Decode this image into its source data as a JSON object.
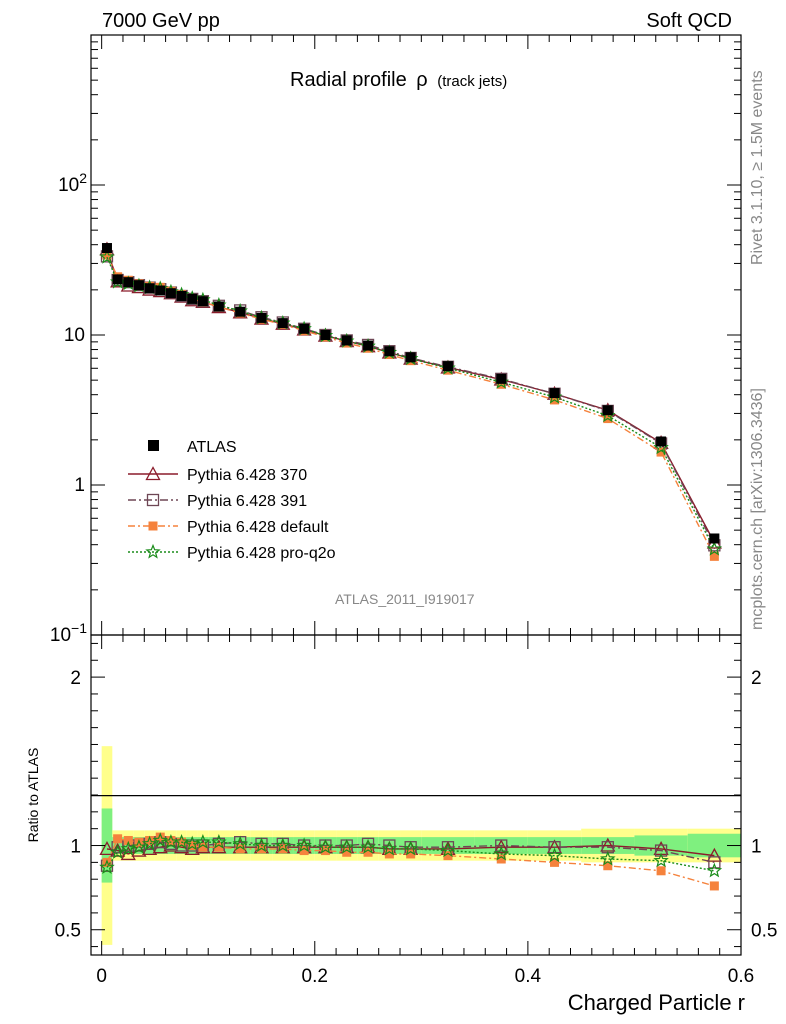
{
  "header": {
    "left": "7000 GeV pp",
    "right": "Soft QCD"
  },
  "side_labels": {
    "rivet": "Rivet 3.1.10, ≥ 1.5M events",
    "mcplots": "mcplots.cern.ch [arXiv:1306.3436]"
  },
  "watermark": "ATLAS_2011_I919017",
  "chart_data": {
    "type": "line",
    "title_main": "Radial profile",
    "title_symbol": "ρ",
    "title_sub": "(track jets)",
    "xlabel": "Charged Particle r",
    "ylabel": "",
    "ratio_ylabel": "Ratio to ATLAS",
    "xlim": [
      -0.01,
      0.6
    ],
    "ylim": [
      0.1,
      1000
    ],
    "ylog": true,
    "ratio_ylim": [
      0.35,
      2.25
    ],
    "x_ticks": [
      {
        "v": 0,
        "label": "0"
      },
      {
        "v": 0.2,
        "label": "0.2"
      },
      {
        "v": 0.4,
        "label": "0.4"
      },
      {
        "v": 0.6,
        "label": "0.6"
      }
    ],
    "y_ticks": [
      {
        "v": 0.1,
        "base": "10",
        "exp": "−1"
      },
      {
        "v": 1,
        "base": "1",
        "exp": ""
      },
      {
        "v": 10,
        "base": "10",
        "exp": ""
      },
      {
        "v": 100,
        "base": "10",
        "exp": "2"
      }
    ],
    "ratio_ticks": [
      {
        "v": 0.5,
        "label": "0.5"
      },
      {
        "v": 1,
        "label": "1"
      },
      {
        "v": 2,
        "label": "2"
      }
    ],
    "x": [
      0.005,
      0.015,
      0.025,
      0.035,
      0.045,
      0.055,
      0.065,
      0.075,
      0.085,
      0.095,
      0.11,
      0.13,
      0.15,
      0.17,
      0.19,
      0.21,
      0.23,
      0.25,
      0.27,
      0.29,
      0.325,
      0.375,
      0.425,
      0.475,
      0.525,
      0.575
    ],
    "x_err": [
      0.005,
      0.005,
      0.005,
      0.005,
      0.005,
      0.005,
      0.005,
      0.005,
      0.005,
      0.005,
      0.01,
      0.01,
      0.01,
      0.01,
      0.01,
      0.01,
      0.01,
      0.01,
      0.01,
      0.01,
      0.025,
      0.025,
      0.025,
      0.025,
      0.025,
      0.025
    ],
    "data_values": [
      38,
      23.5,
      22.5,
      21.5,
      20.5,
      19.8,
      19.0,
      18.2,
      17.4,
      16.8,
      15.5,
      14.3,
      13.0,
      12.0,
      11.0,
      10.0,
      9.2,
      8.5,
      7.8,
      7.1,
      6.2,
      5.1,
      4.1,
      3.15,
      1.95,
      0.44
    ],
    "ratio_band_inner": [
      0.22,
      0.05,
      0.05,
      0.05,
      0.05,
      0.05,
      0.05,
      0.05,
      0.05,
      0.05,
      0.05,
      0.05,
      0.05,
      0.05,
      0.05,
      0.05,
      0.05,
      0.05,
      0.05,
      0.05,
      0.05,
      0.05,
      0.05,
      0.05,
      0.06,
      0.07
    ],
    "ratio_band_outer": [
      0.59,
      0.09,
      0.09,
      0.09,
      0.09,
      0.09,
      0.09,
      0.09,
      0.09,
      0.09,
      0.09,
      0.09,
      0.09,
      0.09,
      0.09,
      0.09,
      0.09,
      0.09,
      0.09,
      0.09,
      0.09,
      0.09,
      0.09,
      0.1,
      0.1,
      0.1
    ],
    "series": [
      {
        "name": "Pythia 6.428 370",
        "color": "#8b1c2b",
        "marker": "triangle-open",
        "dash": "",
        "ratio": [
          0.98,
          0.97,
          0.95,
          0.97,
          0.98,
          0.99,
          1.0,
          0.99,
          0.98,
          0.99,
          0.99,
          0.99,
          0.99,
          0.99,
          0.99,
          0.99,
          0.99,
          0.99,
          0.98,
          0.98,
          0.98,
          0.99,
          0.99,
          1.0,
          0.98,
          0.94
        ]
      },
      {
        "name": "Pythia 6.428 391",
        "color": "#6e4655",
        "marker": "square-open",
        "dash": "8,3,2,3",
        "ratio": [
          0.88,
          0.99,
          1.0,
          1.0,
          1.01,
          1.02,
          1.01,
          1.0,
          1.0,
          1.0,
          1.01,
          1.02,
          1.01,
          1.01,
          1.0,
          1.0,
          1.0,
          1.01,
          1.0,
          0.99,
          0.99,
          1.0,
          0.99,
          0.99,
          0.97,
          0.9
        ]
      },
      {
        "name": "Pythia 6.428 default",
        "color": "#f5823c",
        "marker": "square-filled",
        "dash": "7,3,2,3",
        "ratio": [
          0.9,
          1.04,
          1.03,
          1.02,
          1.03,
          1.05,
          1.03,
          1.02,
          1.0,
          0.99,
          0.99,
          0.98,
          0.98,
          0.98,
          0.97,
          0.97,
          0.96,
          0.96,
          0.95,
          0.95,
          0.94,
          0.92,
          0.9,
          0.88,
          0.85,
          0.76
        ]
      },
      {
        "name": "Pythia 6.428 pro-q2o",
        "color": "#1a8c1a",
        "marker": "star-open",
        "dash": "2,2",
        "ratio": [
          0.87,
          0.96,
          0.98,
          0.99,
          1.01,
          1.03,
          1.02,
          1.02,
          1.01,
          1.02,
          1.02,
          1.01,
          1.0,
          1.0,
          1.0,
          0.99,
          0.99,
          0.99,
          0.98,
          0.98,
          0.97,
          0.95,
          0.94,
          0.92,
          0.91,
          0.85
        ]
      }
    ],
    "legend": {
      "data_label": "ATLAS",
      "placement": "lower-left"
    }
  }
}
